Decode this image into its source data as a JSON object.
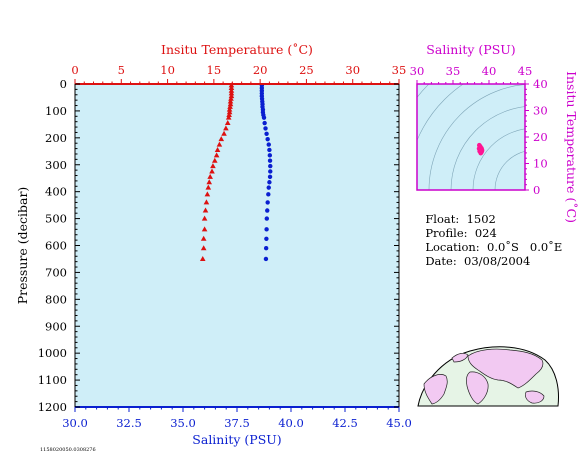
{
  "colors": {
    "plot_bg": "#cfeef8",
    "temperature": "#dd1111",
    "salinity": "#0a1fd0",
    "ts_axis": "#cc00cc",
    "ts_point": "#ff1493",
    "land": "#f2c9f2",
    "ocean": "#e6f4e6"
  },
  "chart_data": [
    {
      "type": "scatter",
      "y_label": "Pressure (decibar)",
      "top_axis_label": "Insitu Temperature (˚C)",
      "bottom_axis_label": "Salinity (PSU)",
      "y_ticks": [
        0,
        100,
        200,
        300,
        400,
        500,
        600,
        700,
        800,
        900,
        1000,
        1100,
        1200
      ],
      "ylim": [
        0,
        1200
      ],
      "y_inverted": true,
      "temperature_ticks": [
        0,
        5,
        10,
        15,
        20,
        25,
        30,
        35
      ],
      "temperature_lim": [
        0,
        35
      ],
      "salinity_ticks": [
        "30.0",
        "32.5",
        "35.0",
        "37.5",
        "40.0",
        "42.5",
        "45.0"
      ],
      "salinity_lim": [
        30,
        45
      ],
      "grid": false,
      "series": [
        {
          "name": "Insitu Temperature",
          "marker": "triangle",
          "x_axis": "top",
          "points": [
            [
              16.9,
              5
            ],
            [
              16.9,
              15
            ],
            [
              16.9,
              25
            ],
            [
              16.9,
              35
            ],
            [
              16.9,
              45
            ],
            [
              16.85,
              55
            ],
            [
              16.8,
              65
            ],
            [
              16.8,
              75
            ],
            [
              16.75,
              85
            ],
            [
              16.7,
              95
            ],
            [
              16.7,
              105
            ],
            [
              16.65,
              115
            ],
            [
              16.6,
              125
            ],
            [
              16.5,
              145
            ],
            [
              16.3,
              165
            ],
            [
              16.1,
              185
            ],
            [
              15.8,
              205
            ],
            [
              15.6,
              225
            ],
            [
              15.4,
              245
            ],
            [
              15.3,
              265
            ],
            [
              15.1,
              285
            ],
            [
              14.9,
              305
            ],
            [
              14.8,
              325
            ],
            [
              14.6,
              345
            ],
            [
              14.5,
              365
            ],
            [
              14.4,
              385
            ],
            [
              14.3,
              410
            ],
            [
              14.2,
              440
            ],
            [
              14.1,
              470
            ],
            [
              14.0,
              500
            ],
            [
              14.0,
              540
            ],
            [
              13.9,
              575
            ],
            [
              13.9,
              610
            ],
            [
              13.8,
              650
            ]
          ]
        },
        {
          "name": "Salinity",
          "marker": "circle",
          "x_axis": "bottom",
          "points": [
            [
              38.65,
              5
            ],
            [
              38.65,
              15
            ],
            [
              38.65,
              25
            ],
            [
              38.65,
              35
            ],
            [
              38.65,
              45
            ],
            [
              38.66,
              55
            ],
            [
              38.67,
              65
            ],
            [
              38.68,
              75
            ],
            [
              38.68,
              85
            ],
            [
              38.7,
              95
            ],
            [
              38.7,
              105
            ],
            [
              38.72,
              115
            ],
            [
              38.75,
              125
            ],
            [
              38.78,
              145
            ],
            [
              38.82,
              165
            ],
            [
              38.87,
              185
            ],
            [
              38.92,
              205
            ],
            [
              38.97,
              225
            ],
            [
              39.0,
              245
            ],
            [
              39.02,
              265
            ],
            [
              39.03,
              285
            ],
            [
              39.04,
              305
            ],
            [
              39.04,
              325
            ],
            [
              39.03,
              345
            ],
            [
              39.0,
              365
            ],
            [
              38.97,
              385
            ],
            [
              38.95,
              410
            ],
            [
              38.92,
              440
            ],
            [
              38.9,
              470
            ],
            [
              38.88,
              500
            ],
            [
              38.87,
              540
            ],
            [
              38.86,
              575
            ],
            [
              38.85,
              610
            ],
            [
              38.84,
              650
            ]
          ]
        }
      ]
    },
    {
      "type": "scatter",
      "top_axis_label": "Salinity (PSU)",
      "right_axis_label": "Insitu Temperature (˚C)",
      "x_ticks": [
        30,
        35,
        40,
        45
      ],
      "xlim": [
        30,
        45
      ],
      "y_ticks": [
        0,
        10,
        20,
        30,
        40
      ],
      "ylim": [
        0,
        40
      ],
      "series": [
        {
          "name": "T-S",
          "points": [
            [
              38.65,
              16.9
            ],
            [
              38.7,
              16.7
            ],
            [
              38.8,
              16.3
            ],
            [
              38.95,
              15.8
            ],
            [
              39.02,
              15.2
            ],
            [
              39.03,
              14.8
            ],
            [
              38.97,
              14.4
            ],
            [
              38.9,
              14.1
            ],
            [
              38.85,
              13.9
            ],
            [
              38.62,
              15.6
            ],
            [
              38.75,
              16.0
            ],
            [
              38.7,
              14.6
            ]
          ]
        }
      ]
    }
  ],
  "info": {
    "float_label": "Float:",
    "float_value": "1502",
    "profile_label": "Profile:",
    "profile_value": "024",
    "location_label": "Location:",
    "location_value": "0.0˚S   0.0˚E",
    "date_label": "Date:",
    "date_value": "03/08/2004"
  },
  "footer_code": "1158020050.0308276"
}
